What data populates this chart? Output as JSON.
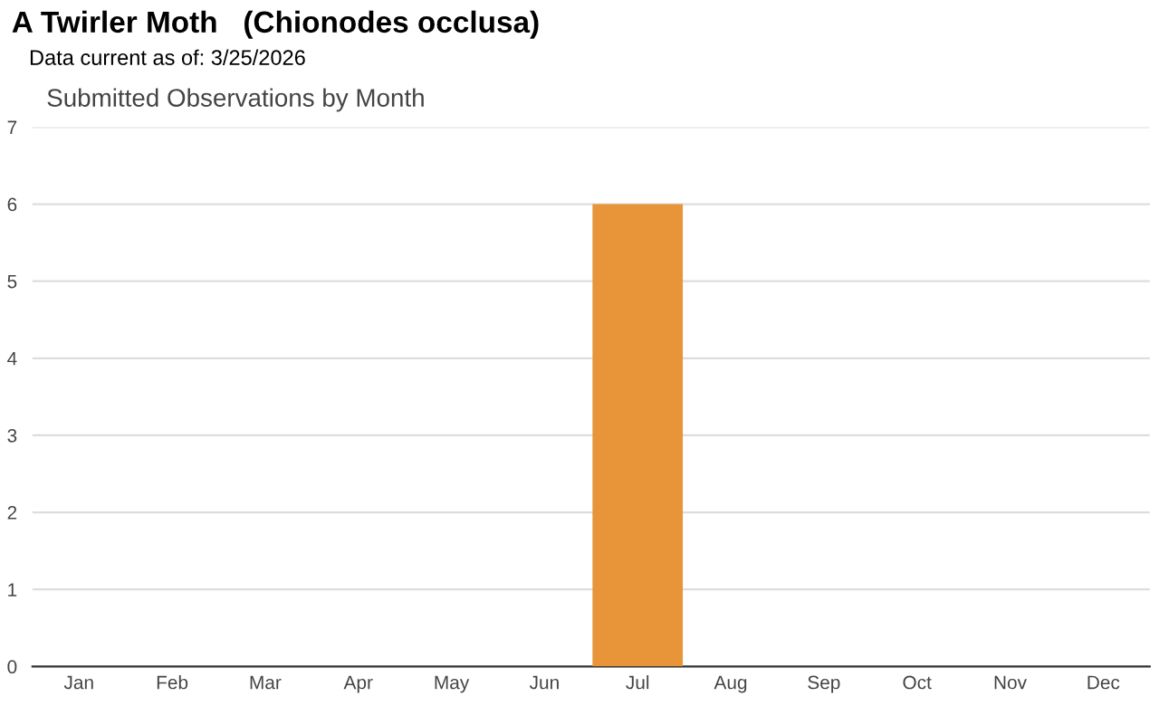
{
  "chart_data": {
    "type": "bar",
    "title": "A Twirler Moth   (Chionodes occlusa)",
    "subtitle": "Data current as of: 3/25/2026",
    "annotations": [
      "Submitted Observations by Month"
    ],
    "categories": [
      "Jan",
      "Feb",
      "Mar",
      "Apr",
      "May",
      "Jun",
      "Jul",
      "Aug",
      "Sep",
      "Oct",
      "Nov",
      "Dec"
    ],
    "values": [
      0,
      0,
      0,
      0,
      0,
      0,
      6,
      0,
      0,
      0,
      0,
      0
    ],
    "color": "#e8953a",
    "ylim": [
      0,
      7
    ],
    "yticks": [
      0,
      1,
      2,
      3,
      4,
      5,
      6,
      7
    ],
    "grid": "y"
  }
}
